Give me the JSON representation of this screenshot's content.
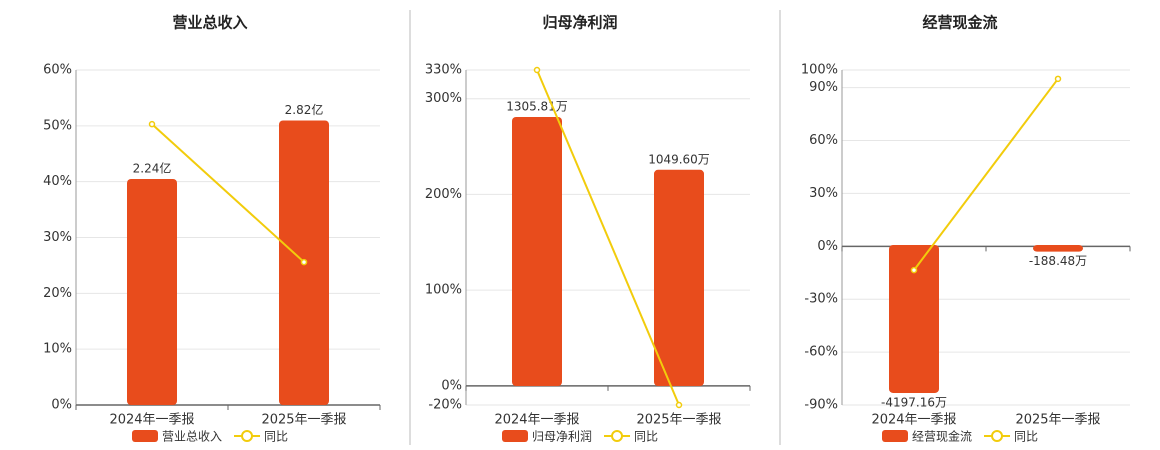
{
  "chart_data": [
    {
      "type": "bar",
      "title": "营业总收入",
      "categories": [
        "2024年一季报",
        "2025年一季报"
      ],
      "series": [
        {
          "name": "营业总收入",
          "type": "bar",
          "color": "#e84c1c",
          "axis": "y2",
          "values": [
            2.24,
            2.82
          ],
          "value_labels": [
            "2.24亿",
            "2.82亿"
          ]
        },
        {
          "name": "同比",
          "type": "line",
          "color": "#f2cc0c",
          "values": [
            50.3,
            25.6
          ]
        }
      ],
      "ylim": [
        0,
        60
      ],
      "yticks": [
        {
          "value": 0,
          "label": "0%"
        },
        {
          "value": 10,
          "label": "10%"
        },
        {
          "value": 20,
          "label": "20%"
        },
        {
          "value": 30,
          "label": "30%"
        },
        {
          "value": 40,
          "label": "40%"
        },
        {
          "value": 50,
          "label": "50%"
        },
        {
          "value": 60,
          "label": "60%"
        }
      ],
      "y2lim": [
        0,
        3.32
      ],
      "grid": true,
      "legend": "bottom"
    },
    {
      "type": "bar",
      "title": "归母净利润",
      "categories": [
        "2024年一季报",
        "2025年一季报"
      ],
      "series": [
        {
          "name": "归母净利润",
          "type": "bar",
          "color": "#e84c1c",
          "axis": "y2",
          "values": [
            1305.81,
            1049.6
          ],
          "value_labels": [
            "1305.81万",
            "1049.60万"
          ]
        },
        {
          "name": "同比",
          "type": "line",
          "color": "#f2cc0c",
          "values": [
            330,
            -20
          ]
        }
      ],
      "ylim": [
        -20,
        330
      ],
      "yticks": [
        {
          "value": -20,
          "label": "-20%"
        },
        {
          "value": 0,
          "label": "0%"
        },
        {
          "value": 100,
          "label": "100%"
        },
        {
          "value": 200,
          "label": "200%"
        },
        {
          "value": 300,
          "label": "300%"
        },
        {
          "value": 330,
          "label": "330%"
        }
      ],
      "y2lim": [
        -92,
        1534
      ],
      "grid": true,
      "legend": "bottom"
    },
    {
      "type": "bar",
      "title": "经营现金流",
      "categories": [
        "2024年一季报",
        "2025年一季报"
      ],
      "series": [
        {
          "name": "经营现金流",
          "type": "bar",
          "color": "#e84c1c",
          "axis": "y2",
          "values": [
            -4197.16,
            -188.48
          ],
          "value_labels": [
            "-4197.16万",
            "-188.48万"
          ]
        },
        {
          "name": "同比",
          "type": "line",
          "color": "#f2cc0c",
          "values": [
            -13.5,
            95
          ]
        }
      ],
      "ylim": [
        -90,
        100
      ],
      "yticks": [
        {
          "value": -90,
          "label": "-90%"
        },
        {
          "value": -60,
          "label": "-60%"
        },
        {
          "value": -30,
          "label": "-30%"
        },
        {
          "value": 0,
          "label": "0%"
        },
        {
          "value": 30,
          "label": "30%"
        },
        {
          "value": 60,
          "label": "60%"
        },
        {
          "value": 90,
          "label": "90%"
        },
        {
          "value": 100,
          "label": "100%"
        }
      ],
      "y2lim": [
        -4538,
        4963
      ],
      "grid": true,
      "legend": "bottom"
    }
  ]
}
